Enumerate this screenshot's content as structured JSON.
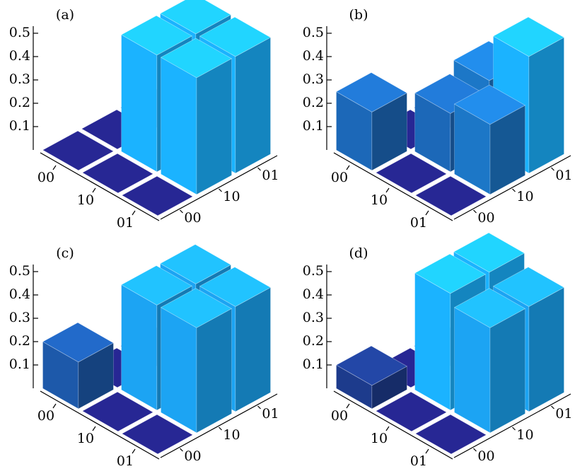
{
  "chart_data": [
    {
      "type": "bar3d",
      "title": "(a)",
      "x_categories": [
        "00",
        "10",
        "01"
      ],
      "y_categories": [
        "00",
        "10",
        "01"
      ],
      "values": [
        [
          0,
          0,
          0
        ],
        [
          0,
          0.5,
          0.5
        ],
        [
          0,
          0.5,
          0.5
        ]
      ],
      "zlim": [
        0,
        0.5
      ],
      "zticks": [
        0.1,
        0.2,
        0.3,
        0.4,
        0.5
      ],
      "colormap": [
        "#1c1c6a",
        "#1aaaf5"
      ]
    },
    {
      "type": "bar3d",
      "title": "(b)",
      "x_categories": [
        "00",
        "10",
        "01"
      ],
      "y_categories": [
        "00",
        "10",
        "01"
      ],
      "values": [
        [
          0.25,
          0,
          0
        ],
        [
          0,
          0.25,
          0.3
        ],
        [
          0,
          0.3,
          0.5
        ]
      ],
      "zlim": [
        0,
        0.5
      ],
      "zticks": [
        0.1,
        0.2,
        0.3,
        0.4,
        0.5
      ],
      "colormap": [
        "#1c1c6a",
        "#1aaaf5"
      ]
    },
    {
      "type": "bar3d",
      "title": "(c)",
      "x_categories": [
        "00",
        "10",
        "01"
      ],
      "y_categories": [
        "00",
        "10",
        "01"
      ],
      "values": [
        [
          0.2,
          0,
          0
        ],
        [
          0,
          0.45,
          0.45
        ],
        [
          0,
          0.45,
          0.45
        ]
      ],
      "zlim": [
        0,
        0.5
      ],
      "zticks": [
        0.1,
        0.2,
        0.3,
        0.4,
        0.5
      ],
      "colormap": [
        "#1c1c6a",
        "#1aaaf5"
      ]
    },
    {
      "type": "bar3d",
      "title": "(d)",
      "x_categories": [
        "00",
        "10",
        "01"
      ],
      "y_categories": [
        "00",
        "10",
        "01"
      ],
      "values": [
        [
          0.1,
          0,
          0
        ],
        [
          0,
          0.5,
          0.45
        ],
        [
          0,
          0.5,
          0.45
        ]
      ],
      "zlim": [
        0,
        0.5
      ],
      "zticks": [
        0.1,
        0.2,
        0.3,
        0.4,
        0.5
      ],
      "colormap": [
        "#1c1c6a",
        "#1aaaf5"
      ]
    }
  ]
}
